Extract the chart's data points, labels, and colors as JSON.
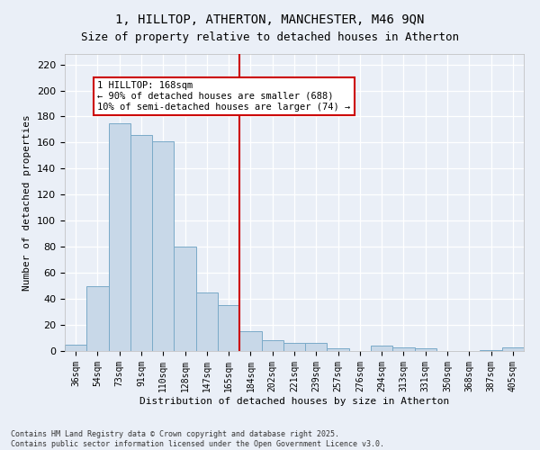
{
  "title": "1, HILLTOP, ATHERTON, MANCHESTER, M46 9QN",
  "subtitle": "Size of property relative to detached houses in Atherton",
  "xlabel": "Distribution of detached houses by size in Atherton",
  "ylabel": "Number of detached properties",
  "categories": [
    "36sqm",
    "54sqm",
    "73sqm",
    "91sqm",
    "110sqm",
    "128sqm",
    "147sqm",
    "165sqm",
    "184sqm",
    "202sqm",
    "221sqm",
    "239sqm",
    "257sqm",
    "276sqm",
    "294sqm",
    "313sqm",
    "331sqm",
    "350sqm",
    "368sqm",
    "387sqm",
    "405sqm"
  ],
  "values": [
    5,
    50,
    175,
    166,
    161,
    80,
    45,
    35,
    15,
    8,
    6,
    6,
    2,
    0,
    4,
    3,
    2,
    0,
    0,
    1,
    3
  ],
  "bar_color": "#c8d8e8",
  "bar_edgecolor": "#7aaac8",
  "vline_x_index": 7,
  "vline_color": "#cc0000",
  "annotation_text": "1 HILLTOP: 168sqm\n← 90% of detached houses are smaller (688)\n10% of semi-detached houses are larger (74) →",
  "annotation_box_color": "#ffffff",
  "annotation_box_edgecolor": "#cc0000",
  "ylim": [
    0,
    228
  ],
  "yticks": [
    0,
    20,
    40,
    60,
    80,
    100,
    120,
    140,
    160,
    180,
    200,
    220
  ],
  "background_color": "#eaeff7",
  "grid_color": "#ffffff",
  "footer": "Contains HM Land Registry data © Crown copyright and database right 2025.\nContains public sector information licensed under the Open Government Licence v3.0.",
  "title_fontsize": 10,
  "subtitle_fontsize": 9,
  "xlabel_fontsize": 8,
  "ylabel_fontsize": 8,
  "tick_fontsize": 8,
  "xtick_fontsize": 7,
  "annot_fontsize": 7.5
}
